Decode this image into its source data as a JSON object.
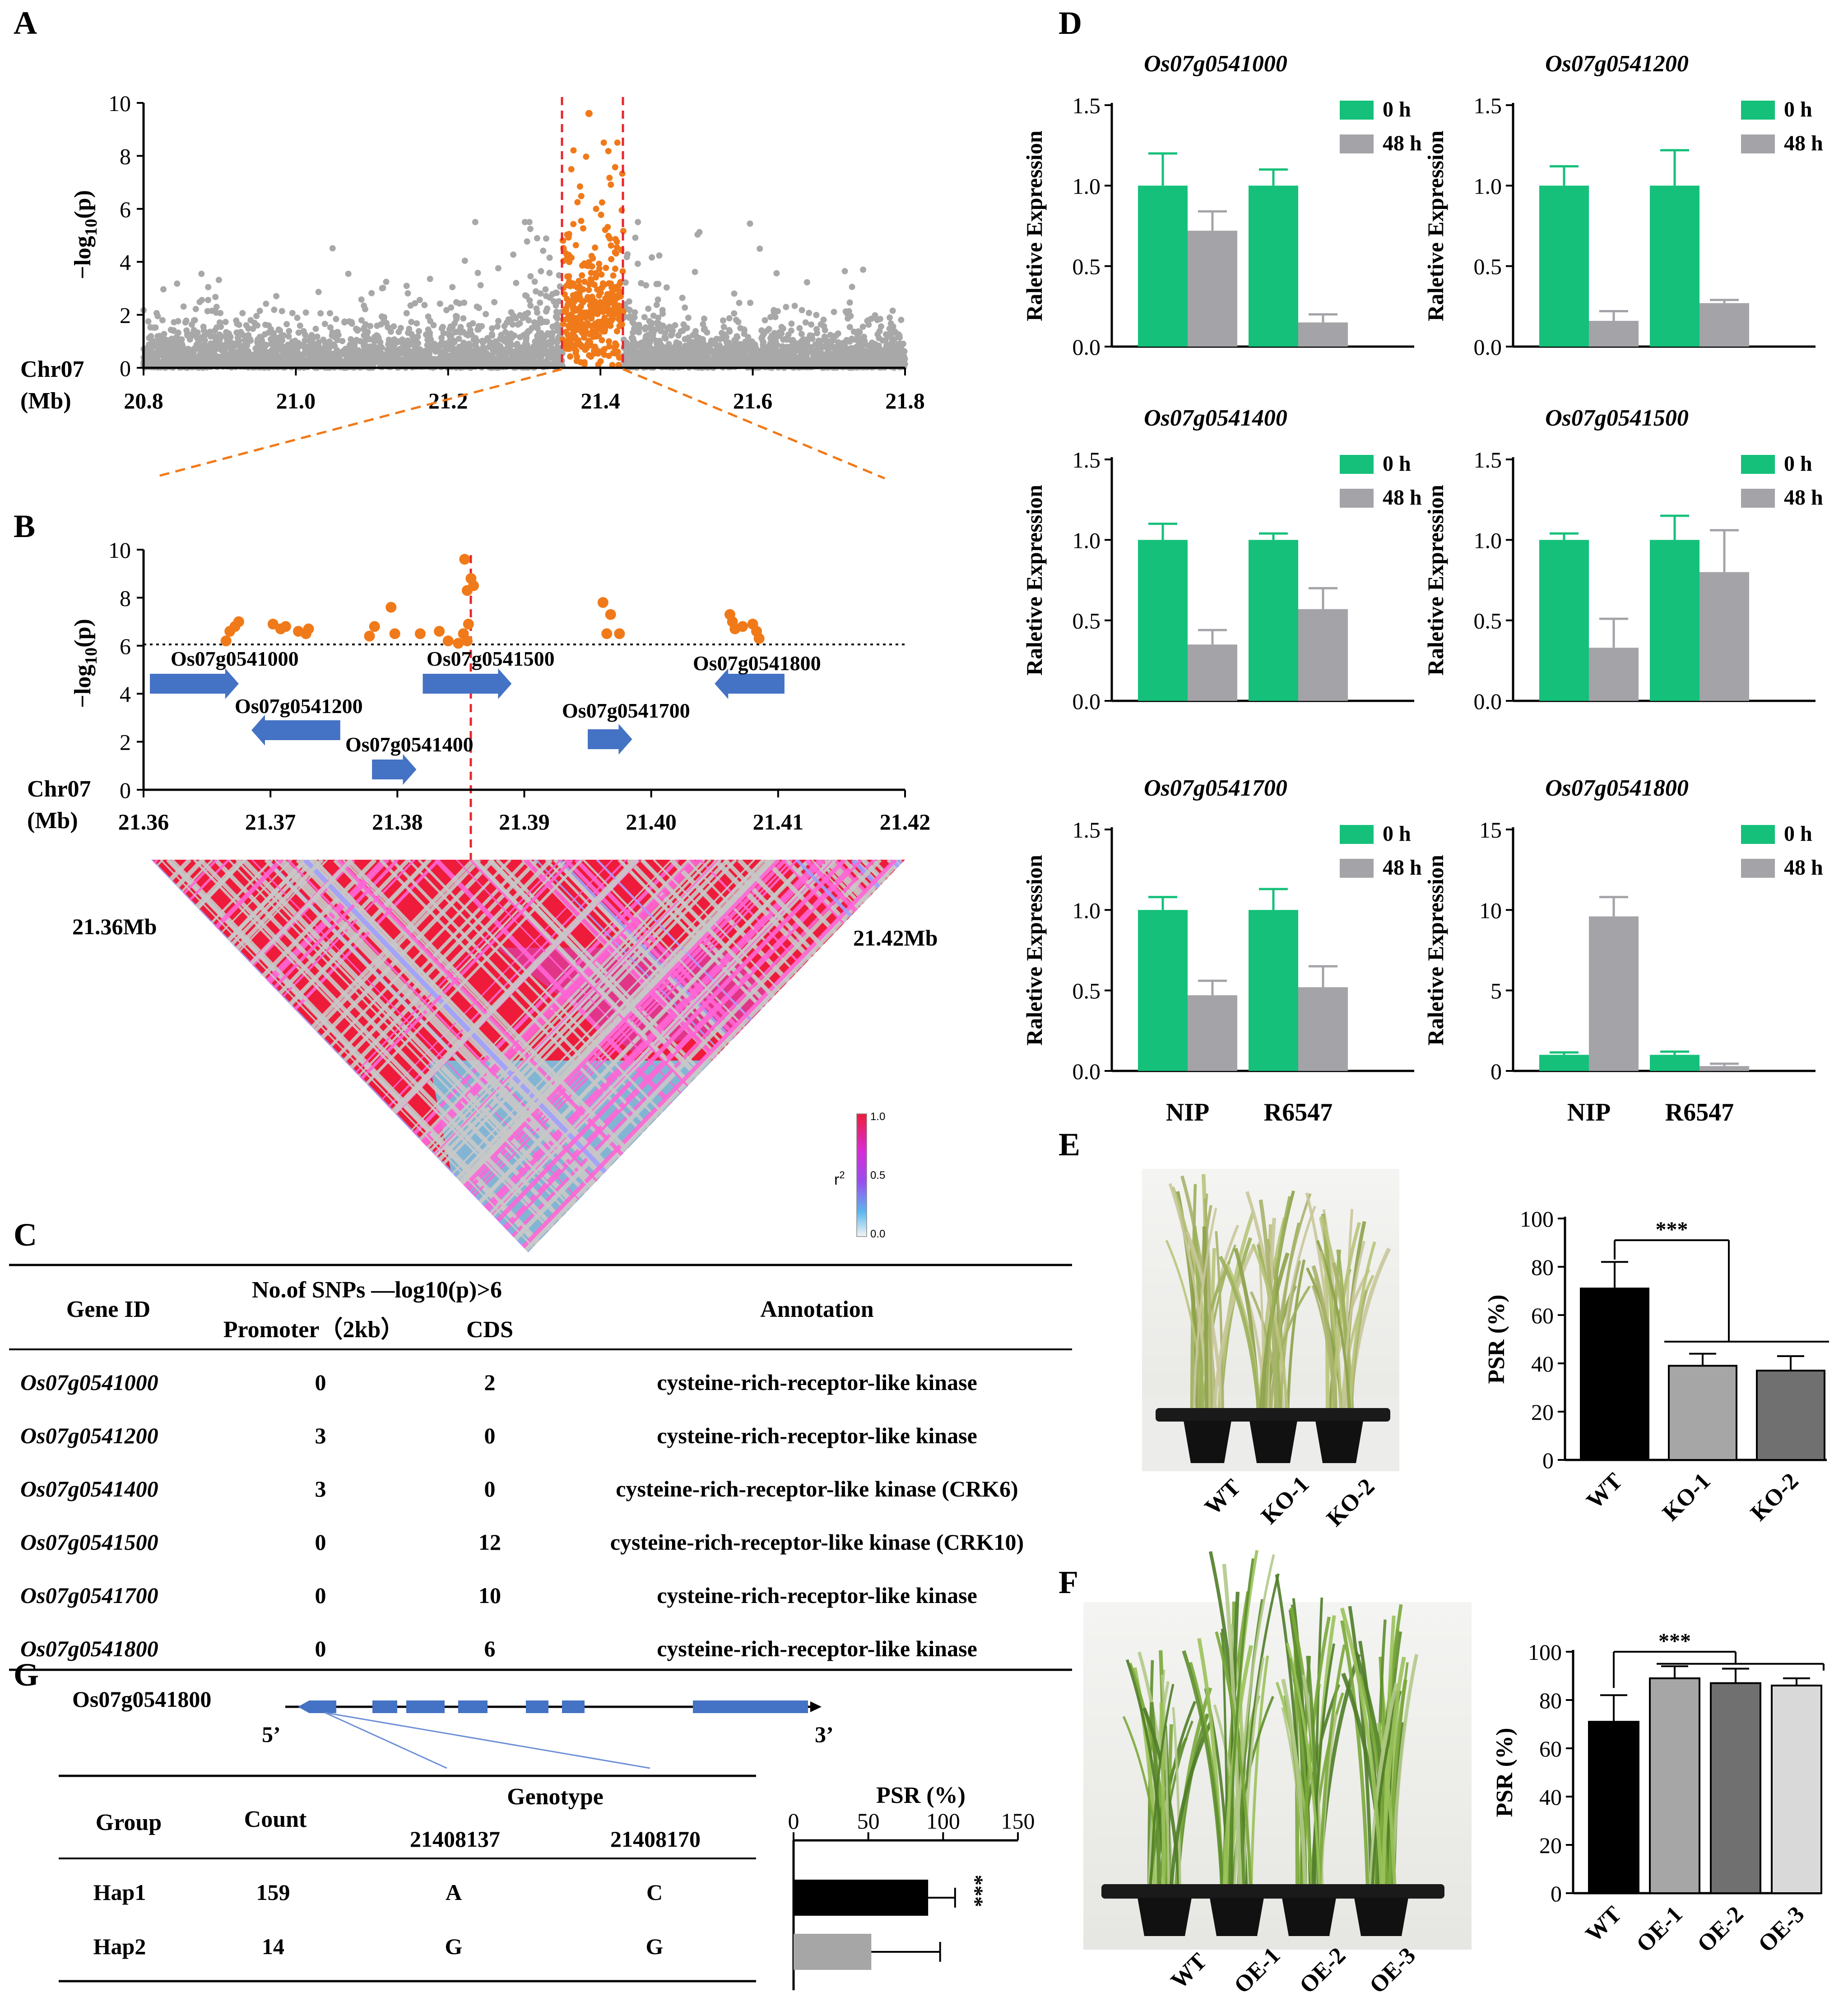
{
  "panels": {
    "A": "A",
    "B": "B",
    "C": "C",
    "D": "D",
    "E": "E",
    "F": "F",
    "G": "G"
  },
  "colors": {
    "orange": "#f07a1a",
    "gray": "#a8a8a9",
    "green": "#15c07a",
    "bargray": "#a3a3a8",
    "arrow": "#4472c4",
    "red": "#e8252b",
    "black": "#000000"
  },
  "panel_a": {
    "ylabel_main": "−log",
    "ylabel_sub": "10",
    "ylabel_end": "(p)",
    "chrom": "Chr07",
    "unit": "(Mb)",
    "xticks": [
      "20.8",
      "21.0",
      "21.2",
      "21.4",
      "21.6",
      "21.8"
    ],
    "yticks": [
      "0",
      "2",
      "4",
      "6",
      "8",
      "10"
    ]
  },
  "panel_b": {
    "ylabel_main": "−log",
    "ylabel_sub": "10",
    "ylabel_end": "(p)",
    "chrom": "Chr07",
    "unit": "(Mb)",
    "xticks": [
      "21.36",
      "21.37",
      "21.38",
      "21.39",
      "21.40",
      "21.41",
      "21.42"
    ],
    "yticks": [
      "0",
      "2",
      "4",
      "6",
      "8",
      "10"
    ],
    "genes": [
      {
        "id": "Os07g0541000",
        "dir": "right",
        "start": 21.3605,
        "end": 21.3675
      },
      {
        "id": "Os07g0541200",
        "dir": "left",
        "start": 21.3685,
        "end": 21.3755
      },
      {
        "id": "Os07g0541400",
        "dir": "right",
        "start": 21.378,
        "end": 21.3815
      },
      {
        "id": "Os07g0541500",
        "dir": "right",
        "start": 21.382,
        "end": 21.389
      },
      {
        "id": "Os07g0541700",
        "dir": "right",
        "start": 21.395,
        "end": 21.3985
      },
      {
        "id": "Os07g0541800",
        "dir": "left",
        "start": 21.405,
        "end": 21.4105
      }
    ],
    "ld_left": "21.36Mb",
    "ld_right": "21.42Mb",
    "legend_title": "r",
    "legend_sup": "2",
    "legend_ticks": [
      "1.0",
      "0.5",
      "0.0"
    ]
  },
  "table_c": {
    "headers": {
      "gene": "Gene ID",
      "snps": "No.of  SNPs  —log10(p)>6",
      "promoter": "Promoter（2kb）",
      "cds": "CDS",
      "annotation": "Annotation"
    },
    "rows": [
      {
        "gene": "Os07g0541000",
        "promoter": "0",
        "cds": "2",
        "annotation": "cysteine-rich-receptor-like kinase"
      },
      {
        "gene": "Os07g0541200",
        "promoter": "3",
        "cds": "0",
        "annotation": "cysteine-rich-receptor-like kinase"
      },
      {
        "gene": "Os07g0541400",
        "promoter": "3",
        "cds": "0",
        "annotation": "cysteine-rich-receptor-like kinase (CRK6)"
      },
      {
        "gene": "Os07g0541500",
        "promoter": "0",
        "cds": "12",
        "annotation": "cysteine-rich-receptor-like kinase (CRK10)"
      },
      {
        "gene": "Os07g0541700",
        "promoter": "0",
        "cds": "10",
        "annotation": "cysteine-rich-receptor-like kinase"
      },
      {
        "gene": "Os07g0541800",
        "promoter": "0",
        "cds": "6",
        "annotation": "cysteine-rich-receptor-like kinase"
      }
    ]
  },
  "panel_g": {
    "gene": "Os07g0541800",
    "five": "5’",
    "three": "3’",
    "headers": {
      "group": "Group",
      "count": "Count",
      "genotype": "Genotype",
      "pos1": "21408137",
      "pos2": "21408170",
      "psr": "PSR (%)"
    },
    "rows": [
      {
        "group": "Hap1",
        "count": "159",
        "g1": "A",
        "g2": "C"
      },
      {
        "group": "Hap2",
        "count": "14",
        "g1": "G",
        "g2": "G"
      }
    ],
    "sig": "***"
  },
  "panel_e": {
    "photo_labels": [
      "WT",
      "KO-1",
      "KO-2"
    ],
    "sig": "***"
  },
  "panel_f": {
    "photo_labels": [
      "WT",
      "OE-1",
      "OE-2",
      "OE-3"
    ],
    "sig": "***"
  },
  "chart_data": [
    {
      "type": "scatter",
      "id": "A",
      "title": "",
      "xlabel": "Chr07 (Mb)",
      "ylabel": "-log10(p)",
      "xlim": [
        20.8,
        21.8
      ],
      "ylim": [
        0,
        10
      ],
      "highlight_region": [
        21.35,
        21.43
      ],
      "peak": {
        "x": 21.385,
        "y": 9.6
      },
      "note": "Manhattan plot; ~4000 SNPs, gray background, orange within highlighted region"
    },
    {
      "type": "scatter",
      "id": "B",
      "xlabel": "Chr07 (Mb)",
      "ylabel": "-log10(p)",
      "xlim": [
        21.36,
        21.42
      ],
      "ylim": [
        0,
        10
      ],
      "threshold": 6,
      "points": [
        [
          21.3665,
          6.2
        ],
        [
          21.3668,
          6.6
        ],
        [
          21.3672,
          6.8
        ],
        [
          21.3675,
          7.0
        ],
        [
          21.3702,
          6.9
        ],
        [
          21.3708,
          6.7
        ],
        [
          21.3712,
          6.8
        ],
        [
          21.3722,
          6.6
        ],
        [
          21.3728,
          6.5
        ],
        [
          21.373,
          6.7
        ],
        [
          21.3778,
          6.4
        ],
        [
          21.3782,
          6.8
        ],
        [
          21.3795,
          7.6
        ],
        [
          21.3798,
          6.5
        ],
        [
          21.3818,
          6.5
        ],
        [
          21.3833,
          6.6
        ],
        [
          21.384,
          6.2
        ],
        [
          21.3848,
          6.1
        ],
        [
          21.3853,
          9.6
        ],
        [
          21.3855,
          8.3
        ],
        [
          21.3858,
          8.8
        ],
        [
          21.386,
          8.5
        ],
        [
          21.3856,
          6.9
        ],
        [
          21.3852,
          6.5
        ],
        [
          21.3855,
          6.2
        ],
        [
          21.3962,
          7.8
        ],
        [
          21.3965,
          6.5
        ],
        [
          21.3968,
          7.3
        ],
        [
          21.3975,
          6.5
        ],
        [
          21.4062,
          7.3
        ],
        [
          21.4064,
          7.0
        ],
        [
          21.4066,
          6.7
        ],
        [
          21.4072,
          6.8
        ],
        [
          21.408,
          6.9
        ],
        [
          21.4083,
          6.6
        ],
        [
          21.4085,
          6.3
        ]
      ]
    },
    {
      "type": "bar",
      "id": "D1",
      "title": "Os07g0541000",
      "categories": [
        "NIP",
        "R6547"
      ],
      "ylabel": "Raletive Expression",
      "ylim": [
        0,
        1.5
      ],
      "yticks": [
        "0.0",
        "0.5",
        "1.0",
        "1.5"
      ],
      "series": [
        {
          "name": "0 h",
          "values": [
            1.0,
            1.0
          ],
          "err": [
            0.2,
            0.1
          ]
        },
        {
          "name": "48 h",
          "values": [
            0.72,
            0.15
          ],
          "err": [
            0.12,
            0.05
          ]
        }
      ]
    },
    {
      "type": "bar",
      "id": "D2",
      "title": "Os07g0541200",
      "categories": [
        "NIP",
        "R6547"
      ],
      "ylabel": "Raletive Expression",
      "ylim": [
        0,
        1.5
      ],
      "yticks": [
        "0.0",
        "0.5",
        "1.0",
        "1.5"
      ],
      "series": [
        {
          "name": "0 h",
          "values": [
            1.0,
            1.0
          ],
          "err": [
            0.12,
            0.22
          ]
        },
        {
          "name": "48 h",
          "values": [
            0.16,
            0.27
          ],
          "err": [
            0.06,
            0.02
          ]
        }
      ]
    },
    {
      "type": "bar",
      "id": "D3",
      "title": "Os07g0541400",
      "categories": [
        "NIP",
        "R6547"
      ],
      "ylabel": "Raletive Expression",
      "ylim": [
        0,
        1.5
      ],
      "yticks": [
        "0.0",
        "0.5",
        "1.0",
        "1.5"
      ],
      "series": [
        {
          "name": "0 h",
          "values": [
            1.0,
            1.0
          ],
          "err": [
            0.1,
            0.04
          ]
        },
        {
          "name": "48 h",
          "values": [
            0.35,
            0.57
          ],
          "err": [
            0.09,
            0.13
          ]
        }
      ]
    },
    {
      "type": "bar",
      "id": "D4",
      "title": "Os07g0541500",
      "categories": [
        "NIP",
        "R6547"
      ],
      "ylabel": "Raletive Expression",
      "ylim": [
        0,
        1.5
      ],
      "yticks": [
        "0.0",
        "0.5",
        "1.0",
        "1.5"
      ],
      "series": [
        {
          "name": "0 h",
          "values": [
            1.0,
            1.0
          ],
          "err": [
            0.04,
            0.15
          ]
        },
        {
          "name": "48 h",
          "values": [
            0.33,
            0.8
          ],
          "err": [
            0.18,
            0.26
          ]
        }
      ]
    },
    {
      "type": "bar",
      "id": "D5",
      "title": "Os07g0541700",
      "categories": [
        "NIP",
        "R6547"
      ],
      "ylabel": "Raletive Expression",
      "ylim": [
        0,
        1.5
      ],
      "yticks": [
        "0.0",
        "0.5",
        "1.0",
        "1.5"
      ],
      "series": [
        {
          "name": "0 h",
          "values": [
            1.0,
            1.0
          ],
          "err": [
            0.08,
            0.13
          ]
        },
        {
          "name": "48 h",
          "values": [
            0.47,
            0.52
          ],
          "err": [
            0.09,
            0.13
          ]
        }
      ]
    },
    {
      "type": "bar",
      "id": "D6",
      "title": "Os07g0541800",
      "categories": [
        "NIP",
        "R6547"
      ],
      "ylabel": "Raletive Expression",
      "ylim": [
        0,
        15
      ],
      "yticks": [
        "0",
        "5",
        "10",
        "15"
      ],
      "series": [
        {
          "name": "0 h",
          "values": [
            1.0,
            1.0
          ],
          "err": [
            0.15,
            0.2
          ]
        },
        {
          "name": "48 h",
          "values": [
            9.6,
            0.3
          ],
          "err": [
            1.2,
            0.15
          ]
        }
      ]
    },
    {
      "type": "bar",
      "id": "E",
      "categories": [
        "WT",
        "KO-1",
        "KO-2"
      ],
      "ylabel": "PSR (%)",
      "ylim": [
        0,
        100
      ],
      "yticks": [
        "0",
        "20",
        "40",
        "60",
        "80",
        "100"
      ],
      "values": [
        71,
        39,
        37
      ],
      "err": [
        11,
        5,
        6
      ],
      "colors": [
        "#000000",
        "#a6a6a6",
        "#707070"
      ]
    },
    {
      "type": "bar",
      "id": "F",
      "categories": [
        "WT",
        "OE-1",
        "OE-2",
        "OE-3"
      ],
      "ylabel": "PSR (%)",
      "ylim": [
        0,
        100
      ],
      "yticks": [
        "0",
        "20",
        "40",
        "60",
        "80",
        "100"
      ],
      "values": [
        71,
        89,
        87,
        86
      ],
      "err": [
        11,
        5,
        6,
        3
      ],
      "colors": [
        "#000000",
        "#a6a6a6",
        "#707070",
        "#d9d9d9"
      ]
    },
    {
      "type": "bar",
      "id": "G",
      "orientation": "horizontal",
      "categories": [
        "Hap1",
        "Hap2"
      ],
      "xlabel": "PSR (%)",
      "xlim": [
        0,
        150
      ],
      "xticks": [
        "0",
        "50",
        "100",
        "150"
      ],
      "values": [
        90,
        52
      ],
      "err": [
        18,
        46
      ],
      "colors": [
        "#000000",
        "#a6a6a6"
      ]
    }
  ]
}
